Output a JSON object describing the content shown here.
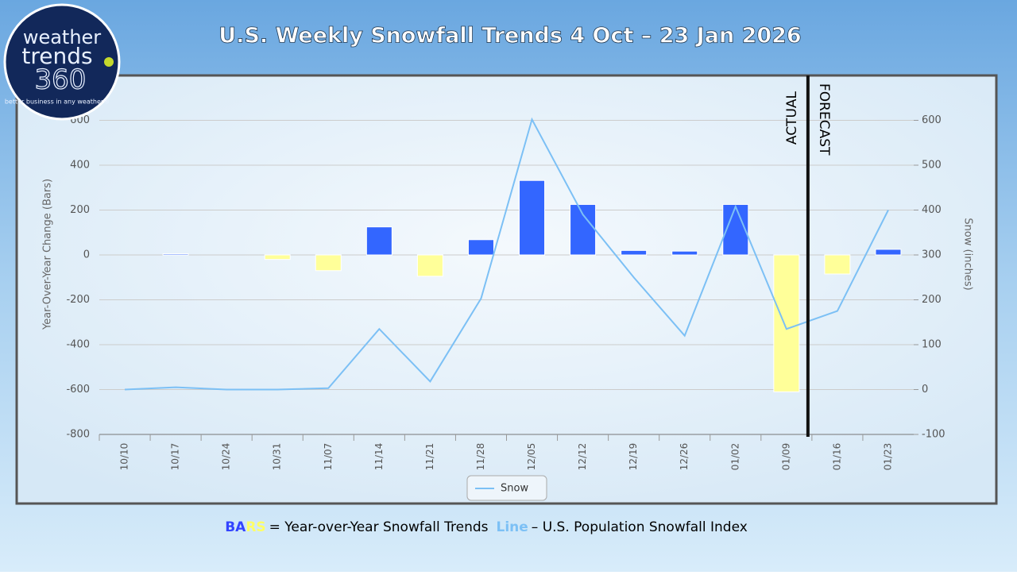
{
  "logo": {
    "line1": "weather",
    "line2": "trends",
    "line3": "360",
    "tagline": "better business in any weather®"
  },
  "chart_data": {
    "type": "bar-line",
    "title": "U.S. Weekly Snowfall Trends 4 Oct – 23 Jan 2026",
    "y_label": "Year-Over-Year Change (Bars)",
    "y2_label": "Snow (inches)",
    "annotations": {
      "actual": "ACTUAL",
      "forecast": "FORECAST"
    },
    "categories": [
      "10/10",
      "10/17",
      "10/24",
      "10/31",
      "11/07",
      "11/14",
      "11/21",
      "11/28",
      "12/05",
      "12/12",
      "12/19",
      "12/26",
      "01/02",
      "01/09",
      "01/16",
      "01/23"
    ],
    "values": [
      0,
      5,
      0,
      -20,
      -70,
      125,
      -95,
      68,
      332,
      225,
      20,
      17,
      225,
      -610,
      -85,
      25
    ],
    "positive_color": "#3366ff",
    "negative_color": "#ffff99",
    "series": [
      {
        "name": "Snow",
        "color": "#7cc0f5",
        "axis": "y2",
        "values": [
          0,
          5,
          0,
          0,
          3,
          135,
          18,
          203,
          602,
          390,
          250,
          120,
          408,
          135,
          175,
          400
        ]
      }
    ],
    "ylim": [
      -800,
      800
    ],
    "yticks": [
      -800,
      -600,
      -400,
      -200,
      0,
      200,
      400,
      600
    ],
    "y2lim": [
      -100,
      700
    ],
    "y2ticks": [
      -100,
      0,
      100,
      200,
      300,
      400,
      500,
      600
    ],
    "grid": true
  },
  "footer": {
    "key_a": "BA",
    "key_b": "RS",
    "bars_text": "= Year-over-Year Snowfall Trends",
    "line_key": "Line",
    "line_text": "– U.S. Population Snowfall Index"
  }
}
